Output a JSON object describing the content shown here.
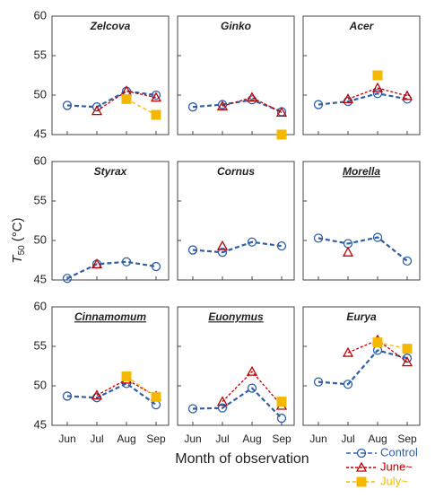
{
  "figure": {
    "x_label": "Month of observation",
    "y_label": {
      "main": "T",
      "sub": "50",
      "unit": "(°C)"
    },
    "categories": [
      "Jun",
      "Jul",
      "Aug",
      "Sep"
    ]
  },
  "chart_data": [
    {
      "type": "line",
      "title": "Zelcova",
      "underline": false,
      "ylim": [
        45,
        60
      ],
      "yticks": [
        45,
        50,
        55,
        60
      ],
      "series": [
        {
          "name": "Control",
          "color": "#2e5fa8",
          "marker": "circle",
          "values": [
            48.7,
            48.5,
            50.5,
            50.0
          ]
        },
        {
          "name": "June~",
          "color": "#c00000",
          "marker": "triangle",
          "values": [
            null,
            48.0,
            50.5,
            49.7
          ]
        },
        {
          "name": "July~",
          "color": "#f5b800",
          "marker": "square",
          "values": [
            null,
            null,
            49.5,
            47.5
          ]
        }
      ]
    },
    {
      "type": "line",
      "title": "Ginko",
      "underline": false,
      "ylim": [
        45,
        60
      ],
      "yticks": [
        45,
        50,
        55,
        60
      ],
      "series": [
        {
          "name": "Control",
          "color": "#2e5fa8",
          "marker": "circle",
          "values": [
            48.5,
            48.8,
            49.4,
            47.9
          ]
        },
        {
          "name": "June~",
          "color": "#c00000",
          "marker": "triangle",
          "values": [
            null,
            48.6,
            49.7,
            47.8
          ]
        },
        {
          "name": "July~",
          "color": "#f5b800",
          "marker": "square",
          "values": [
            null,
            null,
            null,
            45.0
          ]
        }
      ]
    },
    {
      "type": "line",
      "title": "Acer",
      "underline": false,
      "ylim": [
        45,
        60
      ],
      "yticks": [
        45,
        50,
        55,
        60
      ],
      "series": [
        {
          "name": "Control",
          "color": "#2e5fa8",
          "marker": "circle",
          "values": [
            48.8,
            49.2,
            50.2,
            49.5
          ]
        },
        {
          "name": "June~",
          "color": "#c00000",
          "marker": "triangle",
          "values": [
            null,
            49.5,
            50.9,
            49.9
          ]
        },
        {
          "name": "July~",
          "color": "#f5b800",
          "marker": "square",
          "values": [
            null,
            null,
            52.5,
            null
          ]
        }
      ]
    },
    {
      "type": "line",
      "title": "Styrax",
      "underline": false,
      "ylim": [
        45,
        60
      ],
      "yticks": [
        45,
        50,
        55,
        60
      ],
      "series": [
        {
          "name": "Control",
          "color": "#2e5fa8",
          "marker": "circle",
          "values": [
            45.2,
            47.0,
            47.3,
            46.7
          ]
        },
        {
          "name": "June~",
          "color": "#c00000",
          "marker": "triangle",
          "values": [
            null,
            47.0,
            null,
            null
          ]
        }
      ]
    },
    {
      "type": "line",
      "title": "Cornus",
      "underline": false,
      "ylim": [
        45,
        60
      ],
      "yticks": [
        45,
        50,
        55,
        60
      ],
      "series": [
        {
          "name": "Control",
          "color": "#2e5fa8",
          "marker": "circle",
          "values": [
            48.8,
            48.5,
            49.8,
            49.3
          ]
        },
        {
          "name": "June~",
          "color": "#c00000",
          "marker": "triangle",
          "values": [
            null,
            49.3,
            null,
            null
          ]
        }
      ]
    },
    {
      "type": "line",
      "title": "Morella",
      "underline": true,
      "ylim": [
        45,
        60
      ],
      "yticks": [
        45,
        50,
        55,
        60
      ],
      "series": [
        {
          "name": "Control",
          "color": "#2e5fa8",
          "marker": "circle",
          "values": [
            50.3,
            49.6,
            50.4,
            47.4
          ]
        },
        {
          "name": "June~",
          "color": "#c00000",
          "marker": "triangle",
          "values": [
            null,
            48.5,
            null,
            null
          ]
        }
      ]
    },
    {
      "type": "line",
      "title": "Cinnamomum",
      "underline": true,
      "ylim": [
        45,
        60
      ],
      "yticks": [
        45,
        50,
        55,
        60
      ],
      "series": [
        {
          "name": "Control",
          "color": "#2e5fa8",
          "marker": "circle",
          "values": [
            48.7,
            48.5,
            50.3,
            47.6
          ]
        },
        {
          "name": "June~",
          "color": "#c00000",
          "marker": "triangle",
          "values": [
            null,
            48.8,
            50.8,
            48.7
          ]
        },
        {
          "name": "July~",
          "color": "#f5b800",
          "marker": "square",
          "values": [
            null,
            null,
            51.2,
            48.6
          ]
        }
      ]
    },
    {
      "type": "line",
      "title": "Euonymus",
      "underline": true,
      "ylim": [
        45,
        60
      ],
      "yticks": [
        45,
        50,
        55,
        60
      ],
      "series": [
        {
          "name": "Control",
          "color": "#2e5fa8",
          "marker": "circle",
          "values": [
            47.1,
            47.2,
            49.7,
            45.9
          ]
        },
        {
          "name": "June~",
          "color": "#c00000",
          "marker": "triangle",
          "values": [
            null,
            48.0,
            51.8,
            47.5
          ]
        },
        {
          "name": "July~",
          "color": "#f5b800",
          "marker": "square",
          "values": [
            null,
            null,
            null,
            48.0
          ]
        }
      ]
    },
    {
      "type": "line",
      "title": "Eurya",
      "underline": false,
      "ylim": [
        45,
        60
      ],
      "yticks": [
        45,
        50,
        55,
        60
      ],
      "series": [
        {
          "name": "Control",
          "color": "#2e5fa8",
          "marker": "circle",
          "values": [
            50.5,
            50.2,
            54.5,
            53.5
          ]
        },
        {
          "name": "June~",
          "color": "#c00000",
          "marker": "triangle",
          "values": [
            null,
            54.2,
            55.8,
            53.0
          ]
        },
        {
          "name": "July~",
          "color": "#f5b800",
          "marker": "square",
          "values": [
            null,
            null,
            55.5,
            54.7
          ]
        }
      ]
    }
  ]
}
